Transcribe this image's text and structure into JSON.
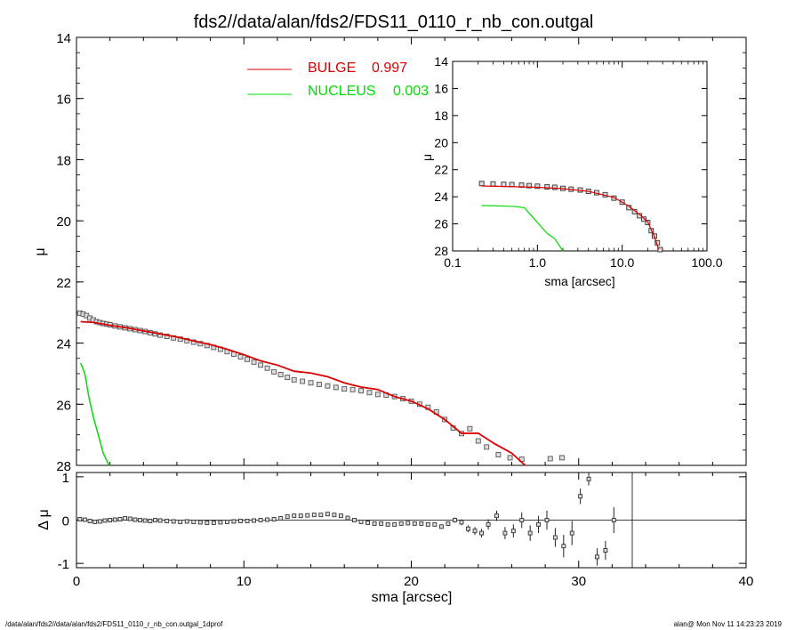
{
  "title": "fds2//data/alan/fds2/FDS11_0110_r_nb_con.outgal",
  "footer_left": "/data/alan/fds2//data/alan/fds2/FDS11_0110_r_nb_con.outgal_1dprof",
  "footer_right": "alan@  Mon Nov 11 14:23:23 2019",
  "colors": {
    "bulge": "#dd0000",
    "nucleus": "#00dd00",
    "data": "#555555",
    "axis": "#000000"
  },
  "chart_data": [
    {
      "panel": "main",
      "type": "line",
      "ylabel": "μ",
      "xlim": [
        0,
        40
      ],
      "ylim": [
        28,
        14
      ],
      "yticks": [
        "14",
        "16",
        "18",
        "20",
        "22",
        "24",
        "26",
        "28"
      ],
      "legend": [
        {
          "label": "BULGE",
          "value": "0.997",
          "color": "#dd0000"
        },
        {
          "label": "NUCLEUS",
          "value": "0.003",
          "color": "#00dd00"
        }
      ],
      "series": [
        {
          "kind": "data-squares",
          "x": [
            0.2,
            0.4,
            0.6,
            0.8,
            1.0,
            1.2,
            1.4,
            1.6,
            1.8,
            2.0,
            2.3,
            2.6,
            2.9,
            3.2,
            3.5,
            3.8,
            4.1,
            4.4,
            4.7,
            5.0,
            5.4,
            5.8,
            6.2,
            6.6,
            7.0,
            7.4,
            7.8,
            8.2,
            8.6,
            9.0,
            9.4,
            9.8,
            10.2,
            10.6,
            11.0,
            11.4,
            11.8,
            12.2,
            12.6,
            13.0,
            13.5,
            14.0,
            14.5,
            15.0,
            15.5,
            16.0,
            16.5,
            17.0,
            17.5,
            18.0,
            18.5,
            19.0,
            19.5,
            20.0,
            20.5,
            21.0,
            21.5,
            22.0,
            22.5,
            23.0,
            23.5,
            24.0,
            24.5,
            25.2,
            25.9,
            26.6,
            28.3,
            29.0
          ],
          "y": [
            23.02,
            23.05,
            23.1,
            23.18,
            23.24,
            23.3,
            23.33,
            23.36,
            23.38,
            23.4,
            23.44,
            23.47,
            23.5,
            23.53,
            23.56,
            23.59,
            23.62,
            23.66,
            23.7,
            23.74,
            23.78,
            23.83,
            23.87,
            23.92,
            23.97,
            24.02,
            24.08,
            24.14,
            24.2,
            24.28,
            24.36,
            24.45,
            24.53,
            24.62,
            24.72,
            24.82,
            24.94,
            25.03,
            25.12,
            25.2,
            25.25,
            25.3,
            25.35,
            25.4,
            25.45,
            25.5,
            25.52,
            25.56,
            25.62,
            25.68,
            25.7,
            25.75,
            25.82,
            25.9,
            26.0,
            26.1,
            26.25,
            26.5,
            26.78,
            26.96,
            26.8,
            27.2,
            27.4,
            27.65,
            27.75,
            27.8,
            27.78,
            27.75
          ]
        },
        {
          "kind": "bulge-model",
          "name": "BULGE",
          "x": [
            0.25,
            1,
            2,
            3,
            4,
            5,
            6,
            7,
            8,
            9,
            10,
            11,
            12,
            13,
            14,
            15,
            16,
            17,
            18,
            19,
            20,
            21,
            22,
            23,
            24,
            25,
            26,
            26.8
          ],
          "y": [
            23.3,
            23.32,
            23.42,
            23.5,
            23.6,
            23.7,
            23.8,
            23.93,
            24.05,
            24.2,
            24.38,
            24.58,
            24.72,
            24.92,
            24.98,
            25.1,
            25.3,
            25.44,
            25.52,
            25.75,
            25.9,
            26.15,
            26.5,
            26.95,
            26.95,
            27.3,
            27.6,
            28.0
          ]
        },
        {
          "kind": "nucleus-model",
          "name": "NUCLEUS",
          "x": [
            0.25,
            0.5,
            0.75,
            1.0,
            1.3,
            1.6,
            1.9,
            2.0
          ],
          "y": [
            24.65,
            25.0,
            25.8,
            26.4,
            27.0,
            27.6,
            27.95,
            28.0
          ]
        }
      ]
    },
    {
      "panel": "inset",
      "type": "scatter",
      "xlabel": "sma [arcsec]",
      "ylabel": "μ",
      "xscale": "log",
      "xlim": [
        0.1,
        100
      ],
      "ylim": [
        28,
        14
      ],
      "xticks": [
        "0.1",
        "1.0",
        "10.0",
        "100.0"
      ],
      "yticks": [
        "14",
        "16",
        "18",
        "20",
        "22",
        "24",
        "26",
        "28"
      ],
      "series": [
        {
          "kind": "data-squares",
          "x": [
            0.22,
            0.3,
            0.4,
            0.5,
            0.65,
            0.8,
            1.0,
            1.3,
            1.6,
            2.0,
            2.5,
            3.2,
            4.0,
            5.0,
            6.3,
            8.0,
            10,
            12,
            14,
            16,
            18,
            20,
            22,
            24,
            26,
            28
          ],
          "y": [
            23.02,
            23.05,
            23.08,
            23.1,
            23.14,
            23.18,
            23.22,
            23.27,
            23.3,
            23.38,
            23.44,
            23.5,
            23.6,
            23.7,
            23.85,
            24.1,
            24.4,
            24.8,
            25.1,
            25.4,
            25.65,
            25.9,
            26.5,
            26.9,
            27.4,
            27.9
          ]
        },
        {
          "kind": "bulge-model",
          "x": [
            0.22,
            0.5,
            1,
            2,
            4,
            8,
            12,
            16,
            20,
            24,
            27
          ],
          "y": [
            23.2,
            23.25,
            23.3,
            23.4,
            23.6,
            24.05,
            24.7,
            25.3,
            25.85,
            26.95,
            27.9
          ]
        },
        {
          "kind": "nucleus-model",
          "x": [
            0.22,
            0.5,
            0.7,
            1.0,
            1.3,
            1.6,
            2.0
          ],
          "y": [
            24.65,
            24.7,
            24.8,
            25.9,
            26.7,
            27.1,
            28.0
          ]
        }
      ]
    },
    {
      "panel": "residual",
      "type": "scatter",
      "xlabel": "sma [arcsec]",
      "ylabel": "Δ μ",
      "xlim": [
        0,
        40
      ],
      "ylim": [
        -1.1,
        1.1
      ],
      "xticks": [
        "0",
        "10",
        "20",
        "30",
        "40"
      ],
      "yticks": [
        "1",
        "0",
        "-1"
      ],
      "cutoff_x": 33.2,
      "series": [
        {
          "kind": "residual-points",
          "x": [
            0.2,
            0.5,
            0.8,
            1.1,
            1.4,
            1.7,
            2.0,
            2.3,
            2.6,
            2.9,
            3.2,
            3.5,
            3.8,
            4.1,
            4.4,
            4.7,
            5.0,
            5.4,
            5.8,
            6.2,
            6.6,
            7.0,
            7.4,
            7.8,
            8.2,
            8.6,
            9.0,
            9.4,
            9.8,
            10.2,
            10.6,
            11.0,
            11.4,
            11.8,
            12.2,
            12.6,
            13.0,
            13.4,
            13.8,
            14.2,
            14.6,
            15.0,
            15.4,
            15.8,
            16.2,
            16.6,
            17.0,
            17.4,
            17.8,
            18.2,
            18.6,
            19.0,
            19.4,
            19.8,
            20.2,
            20.6,
            21.0,
            21.4,
            21.8,
            22.2,
            22.6,
            23.0,
            23.4,
            23.8,
            24.2,
            24.6,
            25.1,
            25.6,
            26.1,
            26.6,
            27.1,
            27.6,
            28.1,
            28.6,
            29.1,
            29.6,
            30.1,
            30.6,
            31.1,
            31.6,
            32.1
          ],
          "y": [
            0.02,
            0.01,
            -0.02,
            -0.04,
            -0.03,
            -0.01,
            0.0,
            0.01,
            0.02,
            0.04,
            0.03,
            0.01,
            0.0,
            -0.01,
            -0.02,
            0.0,
            -0.01,
            -0.02,
            -0.03,
            -0.04,
            -0.03,
            -0.04,
            -0.05,
            -0.06,
            -0.06,
            -0.05,
            -0.04,
            -0.03,
            -0.02,
            -0.02,
            -0.01,
            0.0,
            0.01,
            0.02,
            0.04,
            0.08,
            0.1,
            0.1,
            0.11,
            0.12,
            0.12,
            0.14,
            0.12,
            0.1,
            0.05,
            0.0,
            -0.04,
            -0.06,
            -0.08,
            -0.08,
            -0.1,
            -0.1,
            -0.08,
            -0.07,
            -0.08,
            -0.08,
            -0.1,
            -0.1,
            -0.15,
            -0.08,
            0.0,
            -0.05,
            -0.2,
            -0.25,
            -0.3,
            -0.1,
            0.1,
            -0.3,
            -0.25,
            0.0,
            -0.3,
            -0.1,
            0.0,
            -0.4,
            -0.6,
            -0.3,
            0.55,
            0.95,
            -0.85,
            -0.7,
            0.0
          ],
          "err": [
            0.01,
            0.01,
            0.01,
            0.01,
            0.01,
            0.01,
            0.01,
            0.01,
            0.01,
            0.01,
            0.01,
            0.01,
            0.01,
            0.01,
            0.01,
            0.01,
            0.01,
            0.01,
            0.01,
            0.01,
            0.01,
            0.01,
            0.01,
            0.01,
            0.01,
            0.01,
            0.01,
            0.01,
            0.01,
            0.01,
            0.01,
            0.01,
            0.01,
            0.01,
            0.01,
            0.01,
            0.01,
            0.01,
            0.01,
            0.01,
            0.01,
            0.01,
            0.01,
            0.01,
            0.01,
            0.01,
            0.01,
            0.01,
            0.01,
            0.02,
            0.02,
            0.02,
            0.02,
            0.02,
            0.02,
            0.03,
            0.03,
            0.04,
            0.05,
            0.05,
            0.06,
            0.07,
            0.08,
            0.09,
            0.1,
            0.12,
            0.12,
            0.14,
            0.15,
            0.18,
            0.18,
            0.2,
            0.22,
            0.22,
            0.26,
            0.28,
            0.18,
            0.15,
            0.2,
            0.22,
            0.3
          ]
        }
      ]
    }
  ]
}
